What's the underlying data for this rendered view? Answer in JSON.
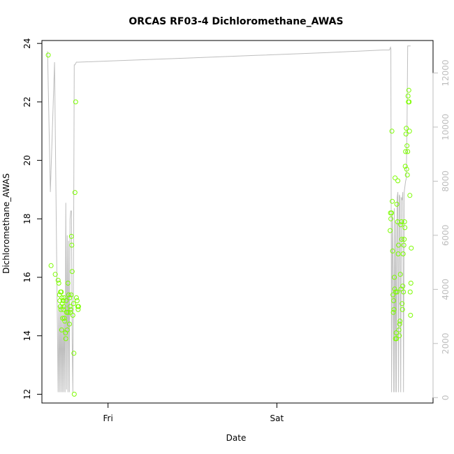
{
  "chart_data": {
    "type": "scatter",
    "title": "ORCAS RF03-4 Dichloromethane_AWAS",
    "xlabel": "Date",
    "ylabel": "Dichloromethane_AWAS",
    "x_ticks": [
      "Fri",
      "Sat"
    ],
    "x_tick_hours": [
      24,
      48
    ],
    "xlim_hours": [
      14.6,
      70.2
    ],
    "ylim": [
      11.7,
      24.1
    ],
    "y_ticks": [
      12,
      14,
      16,
      18,
      20,
      22,
      24
    ],
    "y2lim": [
      -200,
      13200
    ],
    "y2_ticks": [
      0,
      2000,
      4000,
      6000,
      8000,
      10000,
      12000
    ],
    "grid": false,
    "colors": {
      "points": "#7cfc00",
      "line": "#bebebe",
      "axis": "#000000",
      "right_axis": "#bebebe"
    },
    "series": [
      {
        "kind": "points",
        "axis": "left",
        "x_hours": [
          15.5,
          15.9,
          16.5,
          16.9,
          17.0,
          17.1,
          17.15,
          17.2,
          17.25,
          17.3,
          17.35,
          17.4,
          17.45,
          17.5,
          17.55,
          17.6,
          17.65,
          17.7,
          17.75,
          17.8,
          17.85,
          17.95,
          18.0,
          18.05,
          18.1,
          18.15,
          18.2,
          18.3,
          18.35,
          18.4,
          18.5,
          18.55,
          18.6,
          18.65,
          18.7,
          18.75,
          18.8,
          18.85,
          18.9,
          19.0,
          19.1,
          19.15,
          19.2,
          19.3,
          19.4,
          19.5,
          19.6,
          19.7,
          19.75,
          19.8
        ],
        "y": [
          23.6,
          16.4,
          16.1,
          15.9,
          15.8,
          15.4,
          15.2,
          15.0,
          15.5,
          14.9,
          15.5,
          14.2,
          15.3,
          15.1,
          14.6,
          15.2,
          14.9,
          15.0,
          15.3,
          14.6,
          14.5,
          14.1,
          13.9,
          15.2,
          14.8,
          14.8,
          14.2,
          15.8,
          14.8,
          15.4,
          14.4,
          15.3,
          15.0,
          14.8,
          14.9,
          15.4,
          17.4,
          17.1,
          16.2,
          14.7,
          15.1,
          13.4,
          12.0,
          18.9,
          22.0,
          15.3,
          15.2,
          15.0,
          14.9,
          15.0
        ]
      },
      {
        "kind": "points",
        "axis": "left",
        "x_hours": [
          64.1,
          64.15,
          64.2,
          64.3,
          64.35,
          64.4,
          64.45,
          64.5,
          64.55,
          64.6,
          64.65,
          64.7,
          64.75,
          64.8,
          64.85,
          64.9,
          64.95,
          65.0,
          65.05,
          65.1,
          65.15,
          65.2,
          65.25,
          65.3,
          65.35,
          65.4,
          65.45,
          65.5,
          65.55,
          65.6,
          65.65,
          65.7,
          65.75,
          65.8,
          65.85,
          65.9,
          65.95,
          66.0,
          66.05,
          66.1,
          66.15,
          66.2,
          66.25,
          66.3,
          66.35,
          66.4,
          66.45,
          66.5,
          66.55,
          66.6,
          66.65,
          66.7,
          66.75,
          66.8,
          66.85,
          66.9,
          66.95,
          67.0,
          67.05,
          67.1
        ],
        "y": [
          17.6,
          18.2,
          18.0,
          18.2,
          21.0,
          18.6,
          16.9,
          15.4,
          14.8,
          15.2,
          14.9,
          16.0,
          15.6,
          19.4,
          13.9,
          15.5,
          14.1,
          13.9,
          18.5,
          15.5,
          17.9,
          19.3,
          16.8,
          17.1,
          14.2,
          14.0,
          14.4,
          14.5,
          16.1,
          17.8,
          15.6,
          17.9,
          17.3,
          15.1,
          14.9,
          15.7,
          16.8,
          15.5,
          17.1,
          17.3,
          17.9,
          17.7,
          19.8,
          20.3,
          20.9,
          21.1,
          19.7,
          20.5,
          19.5,
          20.3,
          22.2,
          22.0,
          22.4,
          22.0,
          21.0,
          18.8,
          15.5,
          14.7,
          15.8,
          17.0
        ]
      },
      {
        "kind": "line",
        "axis": "right",
        "x_hours": [
          15.4,
          15.8,
          16.4,
          16.9,
          17.0,
          17.1,
          17.2,
          17.3,
          17.4,
          17.5,
          17.6,
          17.7,
          17.8,
          17.9,
          18.0,
          18.1,
          18.2,
          18.3,
          18.4,
          18.5,
          18.6,
          18.7,
          18.8,
          18.9,
          19.0,
          19.1,
          19.2,
          19.3,
          19.4,
          19.5,
          19.6,
          19.8,
          25.0,
          35.0,
          45.0,
          55.0,
          63.0,
          64.0,
          64.15,
          64.2,
          64.3,
          64.4,
          64.5,
          64.6,
          64.7,
          64.8,
          64.9,
          65.0,
          65.1,
          65.2,
          65.3,
          65.4,
          65.5,
          65.6,
          65.7,
          65.8,
          65.9,
          66.0,
          66.1,
          66.2,
          66.3,
          66.4,
          66.5,
          66.6,
          66.7,
          66.8,
          66.9,
          67.0
        ],
        "y": [
          12800,
          7600,
          12400,
          200,
          3400,
          200,
          3400,
          200,
          3400,
          200,
          3400,
          200,
          3400,
          200,
          7200,
          300,
          6000,
          200,
          5800,
          200,
          6600,
          6900,
          6900,
          2200,
          200,
          5000,
          12300,
          12300,
          12350,
          12400,
          12400,
          12400,
          12450,
          12550,
          12650,
          12750,
          12850,
          12850,
          12950,
          12900,
          200,
          6800,
          4800,
          200,
          7000,
          200,
          6500,
          200,
          7400,
          7600,
          200,
          7500,
          7400,
          200,
          7400,
          7300,
          7600,
          200,
          7600,
          7800,
          8000,
          8100,
          9900,
          13000,
          13000,
          13000,
          13000,
          13000
        ]
      }
    ]
  }
}
